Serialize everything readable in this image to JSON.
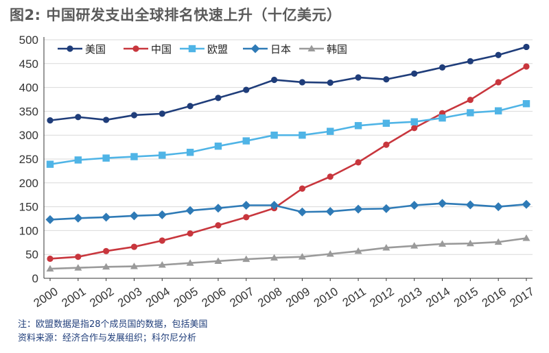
{
  "colors": {
    "title": "#5a5a5a",
    "axis": "#333333",
    "grid": "#d9d9d9",
    "note": "#1f3d7a"
  },
  "chart_data": {
    "type": "line",
    "title": "图2: 中国研发支出全球排名快速上升（十亿美元）",
    "xlabel": "",
    "ylabel": "",
    "x": [
      "2000",
      "2001",
      "2002",
      "2003",
      "2004",
      "2005",
      "2006",
      "2007",
      "2008",
      "2009",
      "2010",
      "2011",
      "2012",
      "2013",
      "2014",
      "2015",
      "2016",
      "2017"
    ],
    "ylim": [
      0,
      500
    ],
    "yticks": [
      0,
      50,
      100,
      150,
      200,
      250,
      300,
      350,
      400,
      450,
      500
    ],
    "grid": true,
    "legend_position": "top-left",
    "series": [
      {
        "name": "美国",
        "color": "#1f3d7a",
        "marker": "circle",
        "values": [
          331,
          338,
          332,
          342,
          345,
          361,
          378,
          395,
          416,
          411,
          410,
          421,
          417,
          429,
          442,
          455,
          468,
          485
        ]
      },
      {
        "name": "中国",
        "color": "#c8363d",
        "marker": "circle",
        "values": [
          41,
          45,
          57,
          66,
          79,
          94,
          111,
          128,
          147,
          188,
          213,
          243,
          280,
          315,
          346,
          374,
          411,
          444
        ]
      },
      {
        "name": "欧盟",
        "color": "#4fb4e6",
        "marker": "square",
        "values": [
          239,
          248,
          252,
          255,
          258,
          264,
          277,
          288,
          300,
          300,
          308,
          320,
          325,
          328,
          336,
          347,
          351,
          366
        ]
      },
      {
        "name": "日本",
        "color": "#2e7ab6",
        "marker": "diamond",
        "values": [
          123,
          126,
          128,
          131,
          133,
          142,
          147,
          153,
          153,
          139,
          140,
          145,
          146,
          153,
          157,
          154,
          150,
          155
        ]
      },
      {
        "name": "韩国",
        "color": "#9a9a9a",
        "marker": "triangle",
        "values": [
          20,
          22,
          24,
          25,
          28,
          32,
          36,
          40,
          43,
          45,
          51,
          57,
          64,
          68,
          72,
          73,
          76,
          84
        ]
      }
    ]
  },
  "notes": {
    "line1": "注：欧盟数据是指28个成员国的数据，包括美国",
    "line2": "资料来源：经济合作与发展组织；科尔尼分析"
  }
}
